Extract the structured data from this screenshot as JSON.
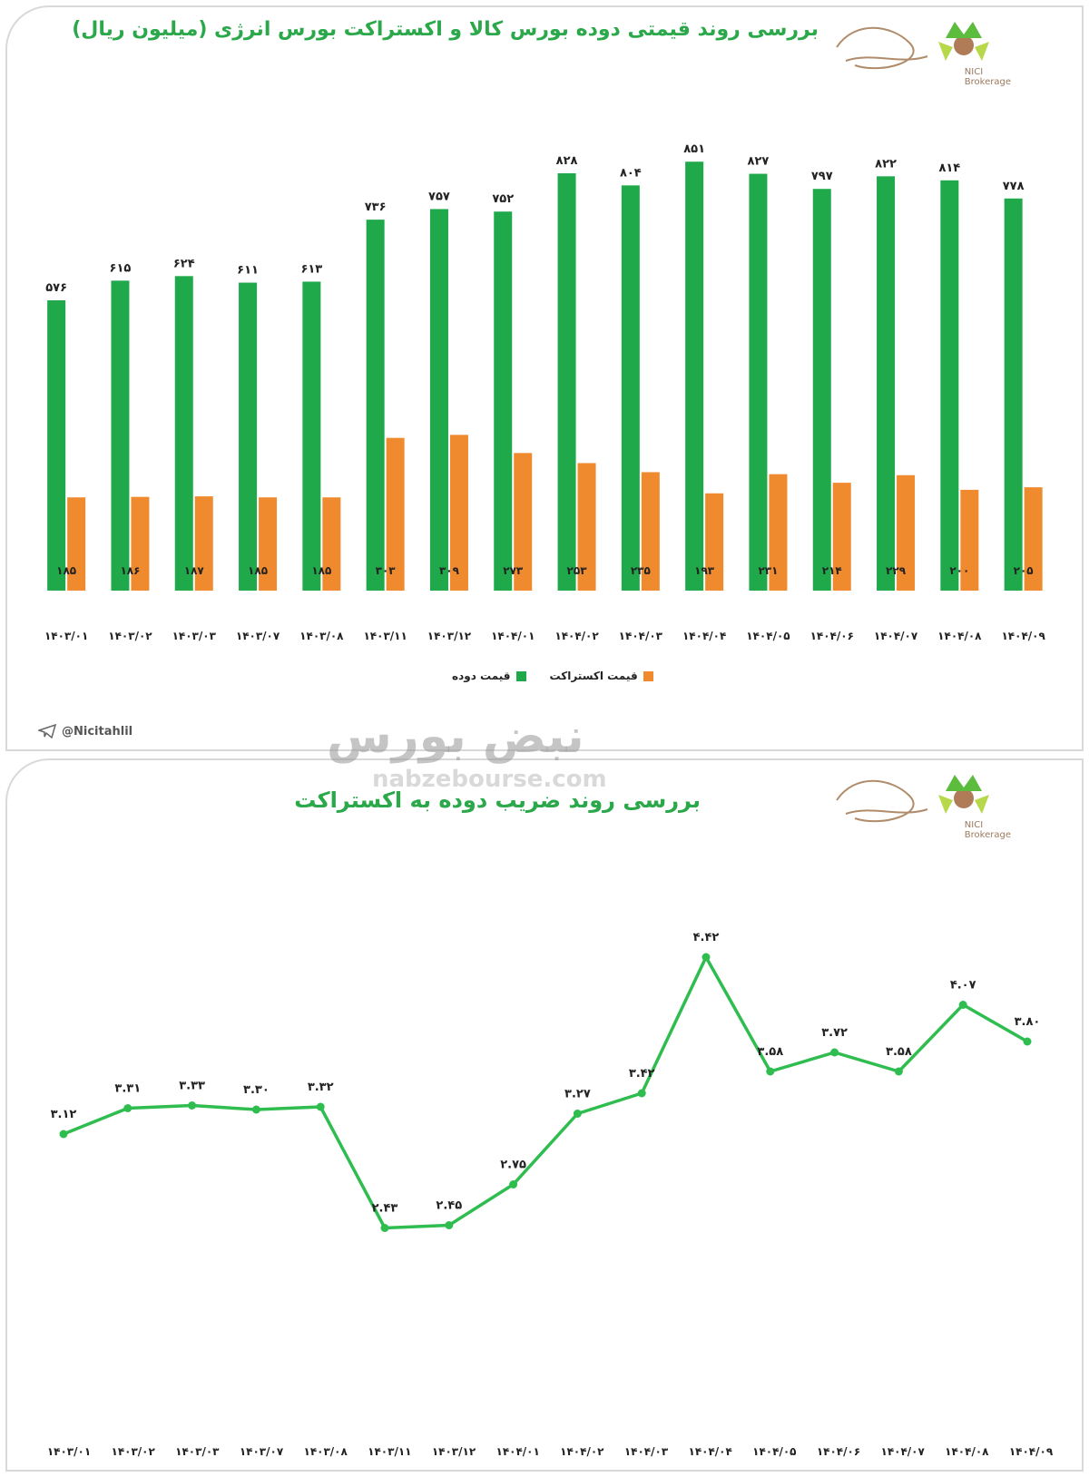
{
  "panels": {
    "top_title": "بررسی روند قیمتی دوده بورس کالا و اکستراکت بورس انرژی (میلیون ریال)",
    "bottom_title": "بررسی روند ضریب دوده به اکستراکت",
    "channel_handle": "@Nicitahlil",
    "brand_caption_line1": "NICI",
    "brand_caption_line2": "Brokerage",
    "watermark_text": "نبض بورس",
    "watermark_url": "nabzebourse.com"
  },
  "colors": {
    "carbon_black": "#1fa94a",
    "extract": "#f08a2e",
    "line": "#2ebd4e",
    "title": "#2aa84a"
  },
  "chart_data": [
    {
      "type": "bar",
      "title": "بررسی روند قیمتی دوده بورس کالا و اکستراکت بورس انرژی (میلیون ریال)",
      "categories": [
        "۱۴۰۳/۰۱",
        "۱۴۰۳/۰۲",
        "۱۴۰۳/۰۳",
        "۱۴۰۳/۰۷",
        "۱۴۰۳/۰۸",
        "۱۴۰۳/۱۱",
        "۱۴۰۳/۱۲",
        "۱۴۰۴/۰۱",
        "۱۴۰۴/۰۲",
        "۱۴۰۴/۰۳",
        "۱۴۰۴/۰۴",
        "۱۴۰۴/۰۵",
        "۱۴۰۴/۰۶",
        "۱۴۰۴/۰۷",
        "۱۴۰۴/۰۸",
        "۱۴۰۴/۰۹"
      ],
      "series": [
        {
          "name": "قیمت دوده",
          "values": [
            576,
            615,
            624,
            611,
            613,
            736,
            757,
            752,
            828,
            804,
            851,
            827,
            797,
            822,
            814,
            778
          ],
          "labels": [
            "۵۷۶",
            "۶۱۵",
            "۶۲۴",
            "۶۱۱",
            "۶۱۳",
            "۷۳۶",
            "۷۵۷",
            "۷۵۲",
            "۸۲۸",
            "۸۰۴",
            "۸۵۱",
            "۸۲۷",
            "۷۹۷",
            "۸۲۲",
            "۸۱۴",
            "۷۷۸"
          ]
        },
        {
          "name": "قیمت اکستراکت",
          "values": [
            185,
            186,
            187,
            185,
            185,
            303,
            309,
            273,
            253,
            235,
            193,
            231,
            214,
            229,
            200,
            205
          ],
          "labels": [
            "۱۸۵",
            "۱۸۶",
            "۱۸۷",
            "۱۸۵",
            "۱۸۵",
            "۳۰۳",
            "۳۰۹",
            "۲۷۳",
            "۲۵۳",
            "۲۳۵",
            "۱۹۳",
            "۲۳۱",
            "۲۱۴",
            "۲۲۹",
            "۲۰۰",
            "۲۰۵"
          ]
        }
      ],
      "ylim": [
        0,
        900
      ],
      "grid": false,
      "legend": "bottom-center"
    },
    {
      "type": "line",
      "title": "بررسی روند ضریب دوده به اکستراکت",
      "categories": [
        "۱۴۰۳/۰۱",
        "۱۴۰۳/۰۲",
        "۱۴۰۳/۰۳",
        "۱۴۰۳/۰۷",
        "۱۴۰۳/۰۸",
        "۱۴۰۳/۱۱",
        "۱۴۰۳/۱۲",
        "۱۴۰۴/۰۱",
        "۱۴۰۴/۰۲",
        "۱۴۰۴/۰۳",
        "۱۴۰۴/۰۴",
        "۱۴۰۴/۰۵",
        "۱۴۰۴/۰۶",
        "۱۴۰۴/۰۷",
        "۱۴۰۴/۰۸",
        "۱۴۰۴/۰۹"
      ],
      "series": [
        {
          "values": [
            3.12,
            3.31,
            3.33,
            3.3,
            3.32,
            2.43,
            2.45,
            2.75,
            3.27,
            3.42,
            4.42,
            3.58,
            3.72,
            3.58,
            4.07,
            3.8
          ],
          "labels": [
            "۳.۱۲",
            "۳.۳۱",
            "۳.۳۳",
            "۳.۳۰",
            "۳.۳۲",
            "۲.۴۳",
            "۲.۴۵",
            "۲.۷۵",
            "۳.۲۷",
            "۳.۴۲",
            "۴.۴۲",
            "۳.۵۸",
            "۳.۷۲",
            "۳.۵۸",
            "۴.۰۷",
            "۳.۸۰"
          ]
        }
      ],
      "ylim": [
        1.6,
        4.8
      ],
      "grid": false,
      "legend": "none"
    }
  ]
}
